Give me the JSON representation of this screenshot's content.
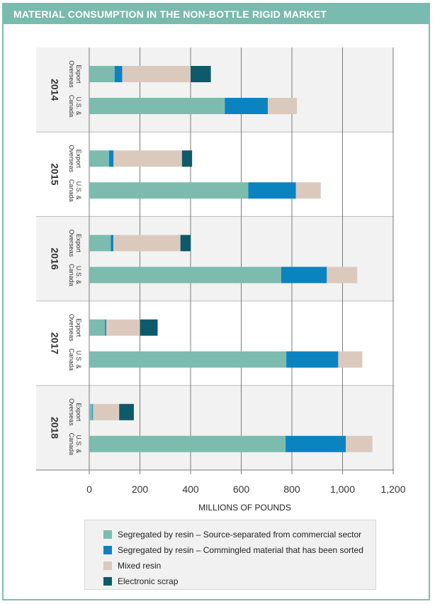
{
  "title": "MATERIAL CONSUMPTION IN THE NON-BOTTLE RIGID MARKET",
  "chart_data": {
    "type": "bar",
    "orientation": "horizontal",
    "stacked": true,
    "xlabel": "MILLIONS OF POUNDS",
    "xlim": [
      0,
      1200
    ],
    "xticks": [
      0,
      200,
      400,
      600,
      800,
      1000,
      1200
    ],
    "xtick_labels": [
      "0",
      "200",
      "400",
      "600",
      "800",
      "1,000",
      "1,200"
    ],
    "grid": "vertical",
    "legend_position": "bottom",
    "series": [
      {
        "name": "Segregated by resin – Source-separated from commercial sector",
        "color": "#7bbcaf"
      },
      {
        "name": "Segregated by resin – Commingled material that has been sorted",
        "color": "#0c83c1"
      },
      {
        "name": "Mixed resin",
        "color": "#dcc9bd"
      },
      {
        "name": "Electronic scrap",
        "color": "#0e5a6b"
      }
    ],
    "groups": [
      {
        "year": "2014",
        "bars": [
          {
            "label": [
              "Export",
              "Overseas"
            ],
            "values": [
              100,
              30,
              270,
              80
            ]
          },
          {
            "label": [
              "U.S. &",
              "Canada"
            ],
            "values": [
              535,
              170,
              115,
              0
            ]
          }
        ]
      },
      {
        "year": "2015",
        "bars": [
          {
            "label": [
              "Export",
              "Overseas"
            ],
            "values": [
              78,
              18,
              270,
              40
            ]
          },
          {
            "label": [
              "U.S. &",
              "Canada"
            ],
            "values": [
              628,
              188,
              98,
              0
            ]
          }
        ]
      },
      {
        "year": "2016",
        "bars": [
          {
            "label": [
              "Export",
              "Overseas"
            ],
            "values": [
              85,
              10,
              265,
              40
            ]
          },
          {
            "label": [
              "U.S. &",
              "Canada"
            ],
            "values": [
              758,
              180,
              120,
              0
            ]
          }
        ]
      },
      {
        "year": "2017",
        "bars": [
          {
            "label": [
              "Export",
              "Overseas"
            ],
            "values": [
              62,
              5,
              133,
              70
            ]
          },
          {
            "label": [
              "U.S. &",
              "Canada"
            ],
            "values": [
              778,
              205,
              95,
              0
            ]
          }
        ]
      },
      {
        "year": "2018",
        "bars": [
          {
            "label": [
              "Export",
              "Overseas"
            ],
            "values": [
              12,
              3,
              103,
              58
            ]
          },
          {
            "label": [
              "U.S. &",
              "Canada"
            ],
            "values": [
              775,
              238,
              105,
              0
            ]
          }
        ]
      }
    ]
  },
  "legend": {
    "items": [
      {
        "label": "Segregated by resin – Source-separated from commercial sector",
        "color": "#7bbcaf"
      },
      {
        "label": "Segregated by resin – Commingled material that has been sorted",
        "color": "#0c83c1"
      },
      {
        "label": "Mixed resin",
        "color": "#dcc9bd"
      },
      {
        "label": "Electronic scrap",
        "color": "#0e5a6b"
      }
    ]
  }
}
